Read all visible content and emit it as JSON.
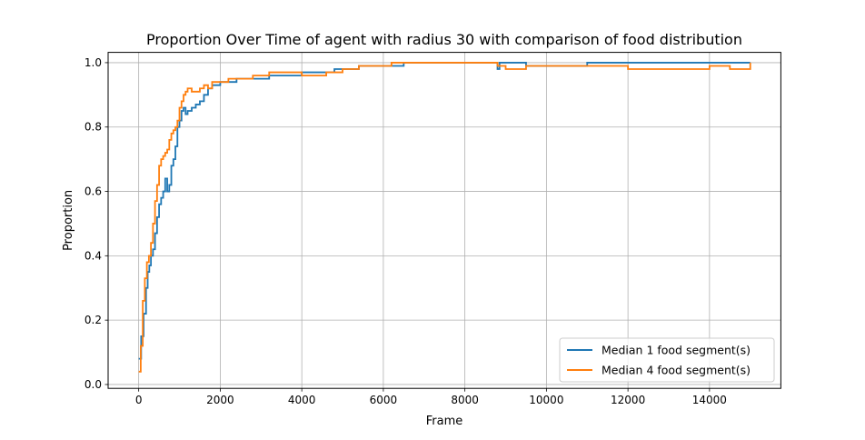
{
  "chart_data": {
    "type": "line",
    "title": "Proportion Over Time of agent with radius 30 with comparison of food distribution",
    "xlabel": "Frame",
    "ylabel": "Proportion",
    "xlim": [
      -750,
      15750
    ],
    "ylim": [
      -0.012,
      1.032
    ],
    "xticks": [
      0,
      2000,
      4000,
      6000,
      8000,
      10000,
      12000,
      14000
    ],
    "xtick_labels": [
      "0",
      "2000",
      "4000",
      "6000",
      "8000",
      "10000",
      "12000",
      "14000"
    ],
    "yticks": [
      0.0,
      0.2,
      0.4,
      0.6,
      0.8,
      1.0
    ],
    "ytick_labels": [
      "0.0",
      "0.2",
      "0.4",
      "0.6",
      "0.8",
      "1.0"
    ],
    "grid": true,
    "legend_position": "lower-right",
    "series": [
      {
        "name": "Median 1 food segment(s)",
        "color": "#1f77b4",
        "x": [
          0,
          60,
          120,
          180,
          220,
          260,
          300,
          350,
          400,
          450,
          500,
          550,
          600,
          650,
          700,
          750,
          800,
          850,
          900,
          950,
          1000,
          1050,
          1100,
          1150,
          1200,
          1300,
          1400,
          1500,
          1600,
          1700,
          1800,
          1900,
          2000,
          2100,
          2200,
          2400,
          2600,
          2800,
          3000,
          3200,
          3500,
          3800,
          4000,
          4300,
          4600,
          4800,
          5000,
          5400,
          5800,
          6000,
          6200,
          6500,
          7000,
          7500,
          8000,
          8500,
          8750,
          8800,
          8850,
          9000,
          9200,
          9500,
          10000,
          10500,
          11000,
          11500,
          12000,
          12500,
          13000,
          13500,
          14000,
          14500,
          15000
        ],
        "values": [
          0.08,
          0.15,
          0.22,
          0.3,
          0.35,
          0.37,
          0.4,
          0.42,
          0.47,
          0.52,
          0.56,
          0.58,
          0.6,
          0.64,
          0.6,
          0.62,
          0.68,
          0.7,
          0.74,
          0.8,
          0.82,
          0.85,
          0.86,
          0.84,
          0.85,
          0.86,
          0.87,
          0.88,
          0.9,
          0.92,
          0.93,
          0.93,
          0.94,
          0.94,
          0.94,
          0.95,
          0.95,
          0.95,
          0.95,
          0.96,
          0.96,
          0.96,
          0.97,
          0.97,
          0.97,
          0.98,
          0.98,
          0.99,
          0.99,
          0.99,
          0.99,
          1.0,
          1.0,
          1.0,
          1.0,
          1.0,
          1.0,
          0.98,
          1.0,
          1.0,
          1.0,
          0.99,
          0.99,
          0.99,
          1.0,
          1.0,
          1.0,
          1.0,
          1.0,
          1.0,
          1.0,
          1.0,
          1.0
        ]
      },
      {
        "name": "Median 4 food segment(s)",
        "color": "#ff7f0e",
        "x": [
          0,
          50,
          100,
          150,
          200,
          250,
          300,
          350,
          400,
          450,
          500,
          550,
          600,
          650,
          700,
          750,
          800,
          850,
          900,
          950,
          1000,
          1050,
          1100,
          1150,
          1200,
          1250,
          1300,
          1400,
          1500,
          1600,
          1700,
          1800,
          1900,
          2000,
          2200,
          2400,
          2600,
          2800,
          3000,
          3200,
          3500,
          3800,
          4000,
          4300,
          4600,
          4800,
          5000,
          5400,
          5800,
          6000,
          6200,
          6500,
          7000,
          7500,
          8000,
          8500,
          8800,
          9000,
          9300,
          9500,
          10000,
          10500,
          11000,
          11500,
          12000,
          12500,
          13000,
          13500,
          14000,
          14500,
          15000
        ],
        "values": [
          0.04,
          0.12,
          0.26,
          0.33,
          0.38,
          0.4,
          0.44,
          0.5,
          0.57,
          0.62,
          0.68,
          0.7,
          0.71,
          0.72,
          0.73,
          0.76,
          0.78,
          0.79,
          0.8,
          0.82,
          0.86,
          0.88,
          0.9,
          0.91,
          0.92,
          0.92,
          0.91,
          0.91,
          0.92,
          0.93,
          0.92,
          0.94,
          0.94,
          0.94,
          0.95,
          0.95,
          0.95,
          0.96,
          0.96,
          0.97,
          0.97,
          0.97,
          0.96,
          0.96,
          0.97,
          0.97,
          0.98,
          0.99,
          0.99,
          0.99,
          1.0,
          1.0,
          1.0,
          1.0,
          1.0,
          1.0,
          0.99,
          0.98,
          0.98,
          0.99,
          0.99,
          0.99,
          0.99,
          0.99,
          0.98,
          0.98,
          0.98,
          0.98,
          0.99,
          0.98,
          1.0
        ]
      }
    ]
  }
}
